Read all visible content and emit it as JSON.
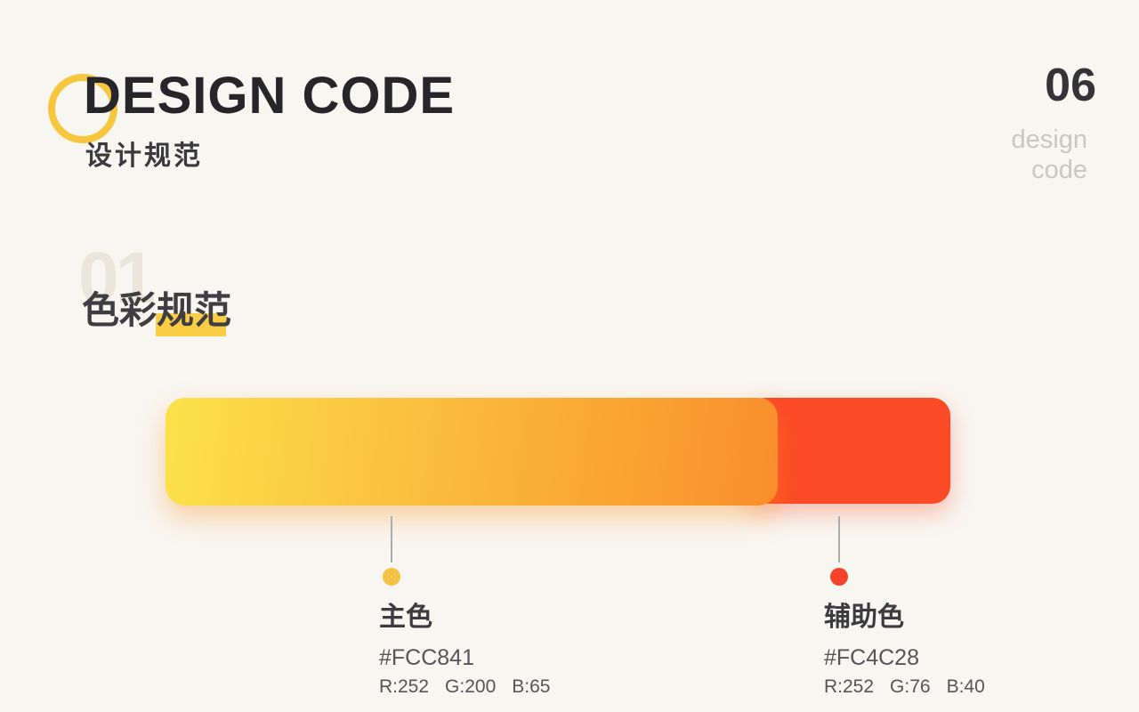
{
  "page": {
    "background": "#F8F6F1"
  },
  "header": {
    "title": "DESIGN CODE",
    "subtitle": "设计规范",
    "page_number": "06",
    "page_word_line1": "design",
    "page_word_line2": "code",
    "ring_color": "#F6C63F",
    "title_color": "#26262A"
  },
  "section": {
    "index": "01",
    "title": "色彩规范",
    "highlight_color": "#FBCD44"
  },
  "palette": {
    "primary_bar_gradient_start": "#FCE14B",
    "primary_bar_gradient_end": "#F98E2B",
    "secondary_bar_color": "#FB4A26",
    "items": [
      {
        "name": "主色",
        "hex": "#FCC841",
        "rgb": [
          "R:252",
          "G:200",
          "B:65"
        ],
        "dot_color": "#F5C245"
      },
      {
        "name": "辅助色",
        "hex": "#FC4C28",
        "rgb": [
          "R:252",
          "G:76",
          "B:40"
        ],
        "dot_color": "#F4432A"
      }
    ]
  }
}
